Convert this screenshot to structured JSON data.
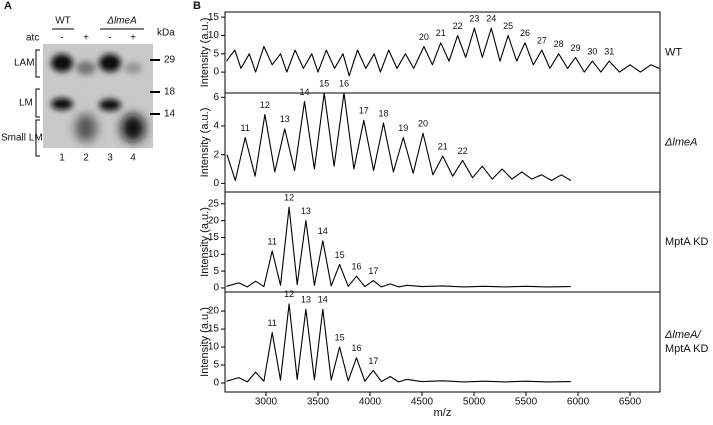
{
  "panel_labels": {
    "a": "A",
    "b": "B"
  },
  "panel_a": {
    "groups": [
      "WT",
      "ΔlmeA"
    ],
    "treatment": "atc",
    "lane_signs": [
      "-",
      "+",
      "-",
      "+"
    ],
    "lane_numbers": [
      "1",
      "2",
      "3",
      "4"
    ],
    "unit": "kDa",
    "markers": [
      "29",
      "18",
      "14"
    ],
    "bands": [
      "LAM",
      "LM",
      "Small LM"
    ]
  },
  "chart_data": [
    {
      "type": "line",
      "y_label": "Intensity (a.u.)",
      "label_lines": [
        "WT"
      ],
      "color": "#000000",
      "xlim": [
        2606,
        6788
      ],
      "ylim": [
        -5.7,
        16.4
      ],
      "yticks": [
        0,
        5,
        10,
        15
      ],
      "x": [
        2620,
        2700,
        2760,
        2840,
        2900,
        2980,
        3060,
        3140,
        3200,
        3280,
        3360,
        3440,
        3500,
        3580,
        3660,
        3740,
        3800,
        3880,
        3960,
        4040,
        4100,
        4180,
        4260,
        4340,
        4420,
        4518,
        4600,
        4680,
        4760,
        4842,
        4920,
        5004,
        5080,
        5166,
        5250,
        5328,
        5410,
        5490,
        5570,
        5652,
        5730,
        5814,
        5900,
        5976,
        6060,
        6138,
        6220,
        6300,
        6400,
        6500,
        6600,
        6700,
        6780
      ],
      "values": [
        3,
        6,
        1,
        5,
        0,
        7,
        2,
        5,
        0,
        6,
        1,
        5,
        0,
        6,
        1,
        5,
        -1,
        6,
        1,
        5,
        0,
        6,
        1,
        5,
        1,
        7,
        2,
        8,
        3,
        10,
        4,
        12,
        4,
        12,
        3,
        10,
        3,
        8,
        2,
        6,
        1,
        5,
        1,
        4,
        0,
        3,
        0,
        3,
        0,
        2,
        0,
        2,
        1
      ],
      "annotations": [
        {
          "label": "20",
          "x": 4518
        },
        {
          "label": "21",
          "x": 4680
        },
        {
          "label": "22",
          "x": 4842
        },
        {
          "label": "23",
          "x": 5004
        },
        {
          "label": "24",
          "x": 5166
        },
        {
          "label": "25",
          "x": 5328
        },
        {
          "label": "26",
          "x": 5490
        },
        {
          "label": "27",
          "x": 5652
        },
        {
          "label": "28",
          "x": 5814
        },
        {
          "label": "29",
          "x": 5976
        },
        {
          "label": "30",
          "x": 6138
        },
        {
          "label": "31",
          "x": 6300
        }
      ]
    },
    {
      "type": "line",
      "y_label": "Intensity (a.u.)",
      "label_lines": [
        "ΔlmeA"
      ],
      "color": "#000000",
      "xlim": [
        2606,
        6788
      ],
      "ylim": [
        -0.6,
        6.3
      ],
      "yticks": [
        0,
        2,
        4,
        6
      ],
      "x": [
        2625,
        2705,
        2800,
        2895,
        2990,
        3085,
        3180,
        3275,
        3370,
        3465,
        3560,
        3655,
        3750,
        3845,
        3940,
        4035,
        4130,
        4225,
        4320,
        4415,
        4510,
        4605,
        4700,
        4795,
        4890,
        4985,
        5080,
        5175,
        5270,
        5365,
        5460,
        5555,
        5650,
        5745,
        5840,
        5930
      ],
      "values": [
        2.0,
        0.2,
        3.2,
        0.5,
        4.8,
        0.8,
        3.8,
        0.9,
        5.7,
        1.0,
        6.3,
        1.2,
        6.3,
        1.0,
        4.4,
        0.9,
        4.2,
        0.8,
        3.2,
        0.7,
        3.5,
        0.6,
        1.9,
        0.5,
        1.6,
        0.4,
        1.2,
        0.3,
        1.0,
        0.3,
        0.8,
        0.3,
        0.6,
        0.2,
        0.6,
        0.2
      ],
      "annotations": [
        {
          "label": "11",
          "x": 2800
        },
        {
          "label": "12",
          "x": 2990
        },
        {
          "label": "13",
          "x": 3180
        },
        {
          "label": "14",
          "x": 3370
        },
        {
          "label": "15",
          "x": 3560
        },
        {
          "label": "16",
          "x": 3750
        },
        {
          "label": "17",
          "x": 3940
        },
        {
          "label": "18",
          "x": 4130
        },
        {
          "label": "19",
          "x": 4320
        },
        {
          "label": "20",
          "x": 4510
        },
        {
          "label": "21",
          "x": 4700
        },
        {
          "label": "22",
          "x": 4890
        }
      ]
    },
    {
      "type": "line",
      "y_label": "Intensity (a.u.)",
      "label_lines": [
        "MptA KD"
      ],
      "color": "#000000",
      "xlim": [
        2606,
        6788
      ],
      "ylim": [
        -1.2,
        28.5
      ],
      "yticks": [
        0,
        5,
        10,
        15,
        20,
        25
      ],
      "x": [
        2620,
        2740,
        2820,
        2900,
        2980,
        3060,
        3140,
        3222,
        3300,
        3384,
        3465,
        3546,
        3627,
        3708,
        3790,
        3870,
        3950,
        4032,
        4110,
        4194,
        4275,
        4356,
        4500,
        4700,
        4900,
        5100,
        5300,
        5500,
        5700,
        5930
      ],
      "values": [
        0.5,
        1.5,
        0.3,
        2,
        0.4,
        11,
        0.8,
        24,
        1,
        20,
        0.8,
        14,
        0.6,
        7,
        0.5,
        3.5,
        0.4,
        2.2,
        0.3,
        1.2,
        0.3,
        0.8,
        0.4,
        0.6,
        0.3,
        0.5,
        0.3,
        0.5,
        0.3,
        0.4
      ],
      "annotations": [
        {
          "label": "11",
          "x": 3060
        },
        {
          "label": "12",
          "x": 3222
        },
        {
          "label": "13",
          "x": 3384
        },
        {
          "label": "14",
          "x": 3546
        },
        {
          "label": "15",
          "x": 3708
        },
        {
          "label": "16",
          "x": 3870
        },
        {
          "label": "17",
          "x": 4032
        }
      ]
    },
    {
      "type": "line",
      "y_label": "Intensity (a.u.)",
      "label_lines": [
        "ΔlmeA/",
        "MptA KD"
      ],
      "color": "#000000",
      "xlim": [
        2606,
        6788
      ],
      "ylim": [
        -2.5,
        25.3
      ],
      "yticks": [
        0,
        5,
        10,
        15,
        20
      ],
      "xticks": [
        3000,
        3500,
        4000,
        4500,
        5000,
        5500,
        6000,
        6500
      ],
      "x_label": "m/z",
      "x": [
        2620,
        2740,
        2820,
        2900,
        2980,
        3060,
        3140,
        3222,
        3300,
        3384,
        3465,
        3546,
        3627,
        3708,
        3790,
        3870,
        3950,
        4032,
        4110,
        4194,
        4275,
        4356,
        4500,
        4700,
        4900,
        5100,
        5300,
        5500,
        5700,
        5930
      ],
      "values": [
        0.5,
        1.5,
        0.3,
        3,
        0.5,
        14,
        0.8,
        22,
        1,
        20.5,
        0.9,
        20.5,
        0.8,
        10,
        0.6,
        7,
        0.5,
        3.5,
        0.4,
        1.8,
        0.3,
        1,
        0.4,
        0.6,
        0.3,
        0.5,
        0.3,
        0.5,
        0.3,
        0.4
      ],
      "annotations": [
        {
          "label": "11",
          "x": 3060
        },
        {
          "label": "12",
          "x": 3222
        },
        {
          "label": "13",
          "x": 3384
        },
        {
          "label": "14",
          "x": 3546
        },
        {
          "label": "15",
          "x": 3708
        },
        {
          "label": "16",
          "x": 3870
        },
        {
          "label": "17",
          "x": 4032
        }
      ]
    }
  ]
}
